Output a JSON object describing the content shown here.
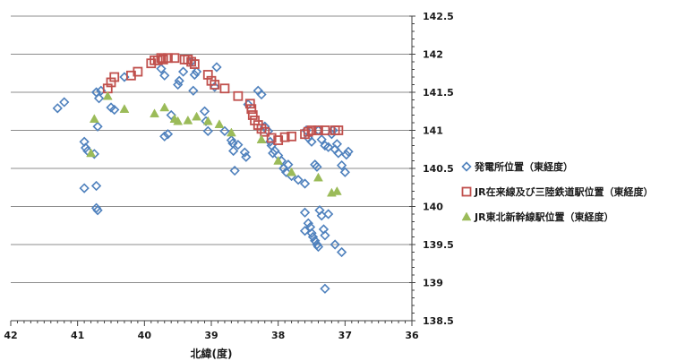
{
  "chart_data": {
    "type": "scatter",
    "xlabel": "北緯(度)",
    "ylabel": "",
    "xlim": [
      42,
      36
    ],
    "ylim": [
      138.5,
      142.5
    ],
    "x_ticks": [
      "42",
      "41",
      "40",
      "39",
      "38",
      "37",
      "36"
    ],
    "y_ticks": [
      "138.5",
      "139",
      "139.5",
      "140",
      "140.5",
      "141",
      "141.5",
      "142",
      "142.5"
    ],
    "grid": "horizontal",
    "legend_position": "right",
    "series": [
      {
        "name": "発電所位置（東経度）",
        "marker": "diamond",
        "color": "#4f81bd",
        "points": [
          [
            41.3,
            141.29
          ],
          [
            41.2,
            141.37
          ],
          [
            40.9,
            140.85
          ],
          [
            40.88,
            140.77
          ],
          [
            40.85,
            140.73
          ],
          [
            40.75,
            140.69
          ],
          [
            40.9,
            140.24
          ],
          [
            40.72,
            140.27
          ],
          [
            40.72,
            139.98
          ],
          [
            40.7,
            139.95
          ],
          [
            40.7,
            141.05
          ],
          [
            40.72,
            141.5
          ],
          [
            40.68,
            141.42
          ],
          [
            40.65,
            141.52
          ],
          [
            40.5,
            141.3
          ],
          [
            40.45,
            141.27
          ],
          [
            40.3,
            141.7
          ],
          [
            39.75,
            141.81
          ],
          [
            39.7,
            141.72
          ],
          [
            39.7,
            140.92
          ],
          [
            39.65,
            140.95
          ],
          [
            39.6,
            141.2
          ],
          [
            39.5,
            141.6
          ],
          [
            39.48,
            141.65
          ],
          [
            39.42,
            141.77
          ],
          [
            39.3,
            141.9
          ],
          [
            39.27,
            141.52
          ],
          [
            39.25,
            141.73
          ],
          [
            39.22,
            141.77
          ],
          [
            39.1,
            141.25
          ],
          [
            39.08,
            141.12
          ],
          [
            39.05,
            140.99
          ],
          [
            38.95,
            141.57
          ],
          [
            38.92,
            141.83
          ],
          [
            38.8,
            140.99
          ],
          [
            38.7,
            140.87
          ],
          [
            38.68,
            140.83
          ],
          [
            38.67,
            140.73
          ],
          [
            38.65,
            140.47
          ],
          [
            38.6,
            140.81
          ],
          [
            38.5,
            140.71
          ],
          [
            38.48,
            140.65
          ],
          [
            38.45,
            141.34
          ],
          [
            38.3,
            141.52
          ],
          [
            38.25,
            141.47
          ],
          [
            38.2,
            141.05
          ],
          [
            38.15,
            140.99
          ],
          [
            38.12,
            140.85
          ],
          [
            38.1,
            140.8
          ],
          [
            38.08,
            140.7
          ],
          [
            38.05,
            140.73
          ],
          [
            38.0,
            140.67
          ],
          [
            37.95,
            140.6
          ],
          [
            37.92,
            140.5
          ],
          [
            37.88,
            140.45
          ],
          [
            37.85,
            140.55
          ],
          [
            37.8,
            140.4
          ],
          [
            37.7,
            140.35
          ],
          [
            37.6,
            140.3
          ],
          [
            37.58,
            141.0
          ],
          [
            37.55,
            140.9
          ],
          [
            37.5,
            140.85
          ],
          [
            37.45,
            140.55
          ],
          [
            37.42,
            140.52
          ],
          [
            37.4,
            141.0
          ],
          [
            37.35,
            140.88
          ],
          [
            37.3,
            140.8
          ],
          [
            37.25,
            140.78
          ],
          [
            37.2,
            140.95
          ],
          [
            37.18,
            141.0
          ],
          [
            37.15,
            140.75
          ],
          [
            37.12,
            140.82
          ],
          [
            37.1,
            140.7
          ],
          [
            37.05,
            140.54
          ],
          [
            37.0,
            140.45
          ],
          [
            36.98,
            140.68
          ],
          [
            36.95,
            140.72
          ],
          [
            37.6,
            139.92
          ],
          [
            37.55,
            139.78
          ],
          [
            37.52,
            139.73
          ],
          [
            37.5,
            139.65
          ],
          [
            37.48,
            139.6
          ],
          [
            37.45,
            139.55
          ],
          [
            37.42,
            139.5
          ],
          [
            37.4,
            139.47
          ],
          [
            37.38,
            139.95
          ],
          [
            37.35,
            139.88
          ],
          [
            37.32,
            139.7
          ],
          [
            37.3,
            139.62
          ],
          [
            37.6,
            139.68
          ],
          [
            37.25,
            139.9
          ],
          [
            37.15,
            139.5
          ],
          [
            37.05,
            139.4
          ],
          [
            37.3,
            138.92
          ]
        ]
      },
      {
        "name": "JR在来線及び三陸鉄道駅位置（東経度）",
        "marker": "square",
        "color": "#c0504d",
        "points": [
          [
            40.55,
            141.55
          ],
          [
            40.5,
            141.63
          ],
          [
            40.45,
            141.7
          ],
          [
            40.2,
            141.72
          ],
          [
            40.1,
            141.77
          ],
          [
            39.9,
            141.88
          ],
          [
            39.85,
            141.92
          ],
          [
            39.8,
            141.92
          ],
          [
            39.75,
            141.95
          ],
          [
            39.72,
            141.93
          ],
          [
            39.65,
            141.95
          ],
          [
            39.55,
            141.95
          ],
          [
            39.4,
            141.93
          ],
          [
            39.35,
            141.93
          ],
          [
            39.3,
            141.9
          ],
          [
            39.25,
            141.87
          ],
          [
            39.05,
            141.73
          ],
          [
            39.0,
            141.65
          ],
          [
            38.95,
            141.6
          ],
          [
            38.8,
            141.55
          ],
          [
            38.6,
            141.45
          ],
          [
            38.42,
            141.35
          ],
          [
            38.4,
            141.28
          ],
          [
            38.38,
            141.2
          ],
          [
            38.35,
            141.13
          ],
          [
            38.3,
            141.07
          ],
          [
            38.25,
            141.02
          ],
          [
            38.2,
            140.98
          ],
          [
            38.1,
            140.9
          ],
          [
            38.0,
            140.87
          ],
          [
            37.9,
            140.91
          ],
          [
            37.8,
            140.92
          ],
          [
            37.6,
            140.95
          ],
          [
            37.55,
            140.98
          ],
          [
            37.5,
            141.0
          ],
          [
            37.4,
            141.0
          ],
          [
            37.3,
            141.0
          ],
          [
            37.15,
            141.0
          ],
          [
            37.1,
            141.0
          ]
        ]
      },
      {
        "name": "JR東北新幹線駅位置（東経度）",
        "marker": "triangle",
        "color": "#9bbb59",
        "points": [
          [
            40.8,
            140.7
          ],
          [
            40.75,
            141.15
          ],
          [
            40.55,
            141.45
          ],
          [
            40.3,
            141.28
          ],
          [
            39.85,
            141.22
          ],
          [
            39.7,
            141.3
          ],
          [
            39.55,
            141.15
          ],
          [
            39.5,
            141.12
          ],
          [
            39.35,
            141.13
          ],
          [
            39.22,
            141.18
          ],
          [
            39.05,
            141.12
          ],
          [
            38.88,
            141.08
          ],
          [
            38.7,
            140.97
          ],
          [
            38.25,
            140.88
          ],
          [
            38.0,
            140.6
          ],
          [
            37.8,
            140.45
          ],
          [
            37.4,
            140.38
          ],
          [
            37.2,
            140.18
          ],
          [
            37.12,
            140.2
          ]
        ]
      }
    ]
  }
}
